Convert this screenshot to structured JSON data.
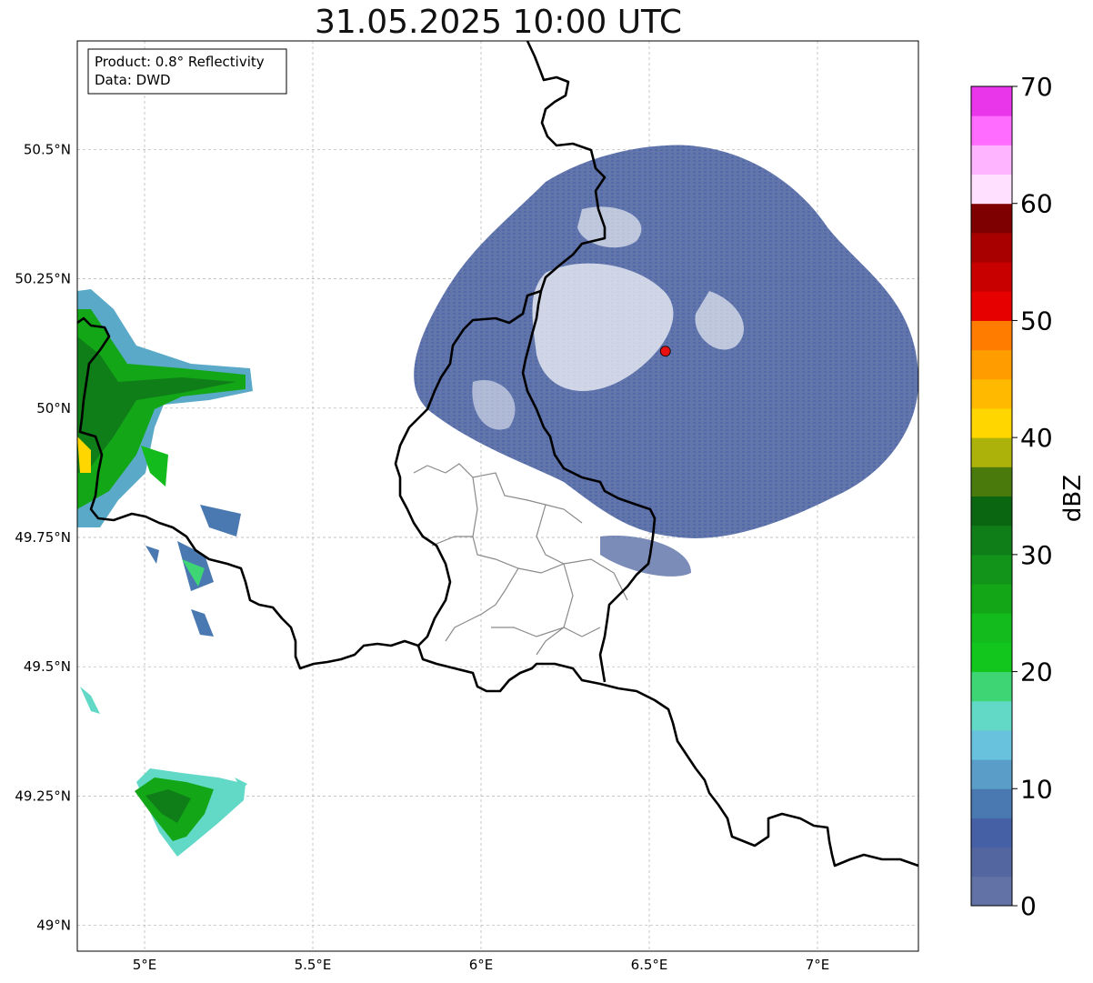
{
  "title": "31.05.2025 10:00 UTC",
  "info_box": {
    "line1": "Product: 0.8° Reflectivity",
    "line2": "Data: DWD"
  },
  "map": {
    "extent": {
      "lon_min": 4.8,
      "lon_max": 7.3,
      "lat_min": 48.95,
      "lat_max": 50.71
    },
    "lat_ticks": [
      {
        "value": 50.5,
        "label": "50.5°N"
      },
      {
        "value": 50.25,
        "label": "50.25°N"
      },
      {
        "value": 50.0,
        "label": "50°N"
      },
      {
        "value": 49.75,
        "label": "49.75°N"
      },
      {
        "value": 49.5,
        "label": "49.5°N"
      },
      {
        "value": 49.25,
        "label": "49.25°N"
      },
      {
        "value": 49.0,
        "label": "49°N"
      }
    ],
    "lon_ticks": [
      {
        "value": 5.0,
        "label": "5°E"
      },
      {
        "value": 5.5,
        "label": "5.5°E"
      },
      {
        "value": 6.0,
        "label": "6°E"
      },
      {
        "value": 6.5,
        "label": "6.5°E"
      },
      {
        "value": 7.0,
        "label": "7°E"
      }
    ],
    "grid": true,
    "radar_site": {
      "lon": 6.548,
      "lat": 50.11,
      "color": "#e81010"
    }
  },
  "colorbar": {
    "label": "dBZ",
    "min": 0,
    "max": 70,
    "tick_labels": [
      "0",
      "10",
      "20",
      "30",
      "40",
      "50",
      "60",
      "70"
    ],
    "step": 2.5,
    "colors": [
      "#6272a6",
      "#5466a0",
      "#4660a6",
      "#4a78b0",
      "#5a9dc8",
      "#68c2de",
      "#62d8c6",
      "#3ed674",
      "#12c61e",
      "#13bb1c",
      "#13a718",
      "#12941a",
      "#0f7e18",
      "#0b6612",
      "#4a7a0c",
      "#adb20a",
      "#ffd600",
      "#ffba00",
      "#ff9c00",
      "#ff7c00",
      "#e60000",
      "#c80000",
      "#a80000",
      "#7e0000",
      "#ffe0ff",
      "#ffb4ff",
      "#ff6cff",
      "#ea36ea"
    ]
  }
}
